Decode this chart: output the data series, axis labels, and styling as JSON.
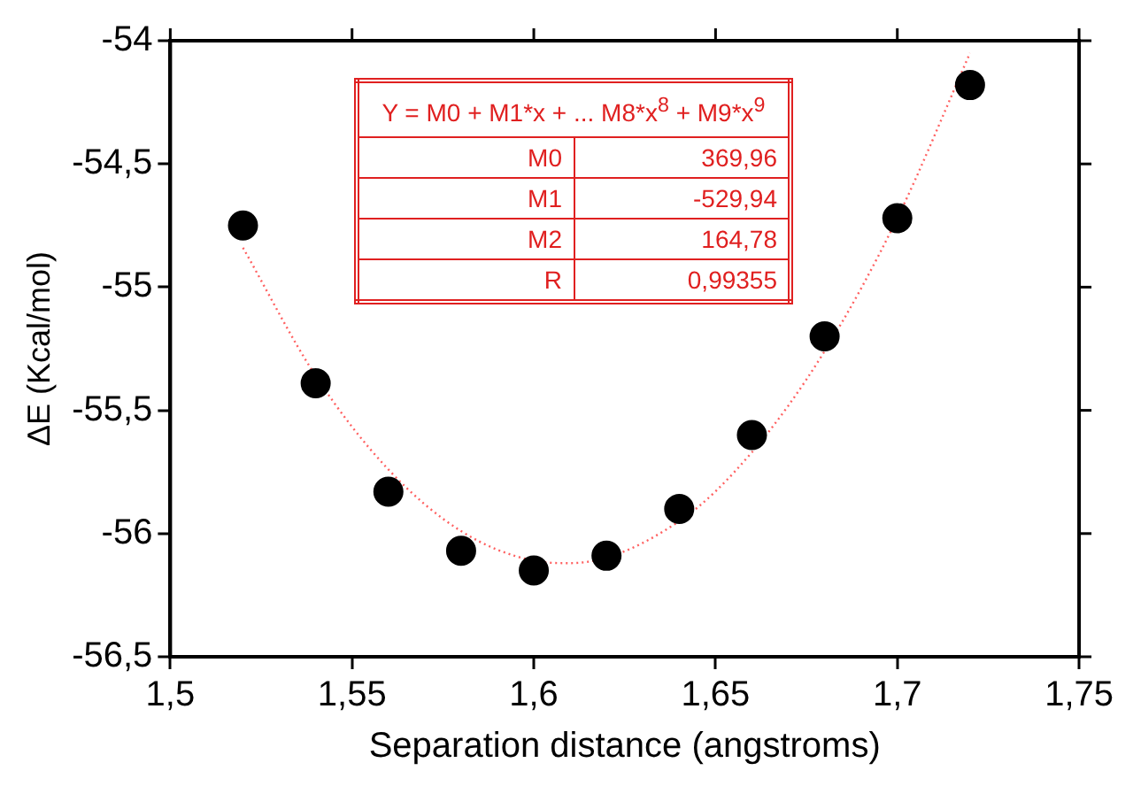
{
  "chart_data": {
    "type": "scatter",
    "xlabel": "Separation distance (angstroms)",
    "ylabel": "ΔE (Kcal/mol)",
    "xlim": [
      1.5,
      1.75
    ],
    "ylim": [
      -56.5,
      -54
    ],
    "xticks": [
      {
        "value": 1.5,
        "label": "1,5"
      },
      {
        "value": 1.55,
        "label": "1,55"
      },
      {
        "value": 1.6,
        "label": "1,6"
      },
      {
        "value": 1.65,
        "label": "1,65"
      },
      {
        "value": 1.7,
        "label": "1,7"
      },
      {
        "value": 1.75,
        "label": "1,75"
      }
    ],
    "yticks": [
      {
        "value": -56.5,
        "label": "-56,5"
      },
      {
        "value": -56,
        "label": "-56"
      },
      {
        "value": -55.5,
        "label": "-55,5"
      },
      {
        "value": -55,
        "label": "-55"
      },
      {
        "value": -54.5,
        "label": "-54,5"
      },
      {
        "value": -54,
        "label": "-54"
      }
    ],
    "grid": false,
    "legend": false,
    "series": [
      {
        "color": "#000000",
        "marker": "circle",
        "x": [
          1.52,
          1.54,
          1.56,
          1.58,
          1.6,
          1.62,
          1.64,
          1.66,
          1.68,
          1.7,
          1.72
        ],
        "values": [
          -54.75,
          -55.39,
          -55.83,
          -56.07,
          -56.15,
          -56.09,
          -55.9,
          -55.6,
          -55.2,
          -54.72,
          -54.18
        ]
      },
      {
        "type": "line",
        "color": "#ff6060",
        "marker": "none",
        "line_style": "dotted",
        "x": [
          1.52,
          1.54,
          1.56,
          1.58,
          1.6,
          1.61,
          1.64,
          1.66,
          1.68,
          1.7,
          1.72
        ],
        "values": [
          -54.84,
          -55.36,
          -55.74,
          -55.99,
          -56.11,
          -56.12,
          -55.95,
          -55.67,
          -55.26,
          -54.72,
          -54.05
        ]
      }
    ],
    "annotations": [
      "Y = M0 + M1*x + ... M8*x$^{8}$ + M9*x$^{9}$",
      "M0",
      "369,96",
      "M1",
      "-529,94",
      "M2",
      "164,78",
      "R",
      "0,99355"
    ]
  }
}
